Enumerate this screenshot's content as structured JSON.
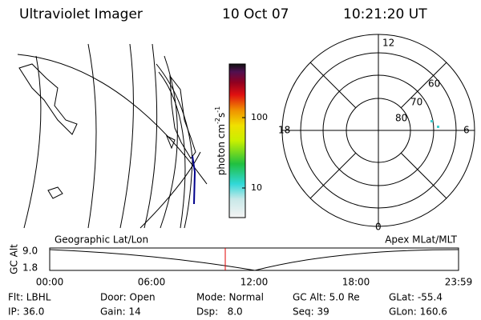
{
  "header": {
    "title": "Ultraviolet Imager",
    "date": "10 Oct 07",
    "time": "10:21:20 UT"
  },
  "colorbar": {
    "unit": {
      "base": "photon cm",
      "exp1": "-2",
      "mid": "s",
      "exp2": "-1"
    },
    "ticks": [
      "100",
      "10"
    ]
  },
  "polar": {
    "mlt_labels": [
      "12",
      "18",
      "6",
      "0"
    ],
    "mlat_labels": [
      "60",
      "70",
      "80"
    ]
  },
  "orbit": {
    "left_title": "Geographic Lat/Lon",
    "right_title": "Apex MLat/MLT",
    "y_label": "GC Alt",
    "y_ticks": [
      "9.0",
      "1.8"
    ],
    "x_ticks": [
      "00:00",
      "06:00",
      "12:00",
      "18:00",
      "23:59"
    ]
  },
  "footer": {
    "rows": [
      [
        "Flt: LBHL",
        "Door: Open",
        "Mode: Normal",
        "GC Alt: 5.0 Re",
        "GLat: -55.4"
      ],
      [
        "IP: 36.0",
        "Gain: 14",
        "Dsp:   8.0",
        "Seq: 39",
        "GLon: 160.6"
      ]
    ]
  }
}
